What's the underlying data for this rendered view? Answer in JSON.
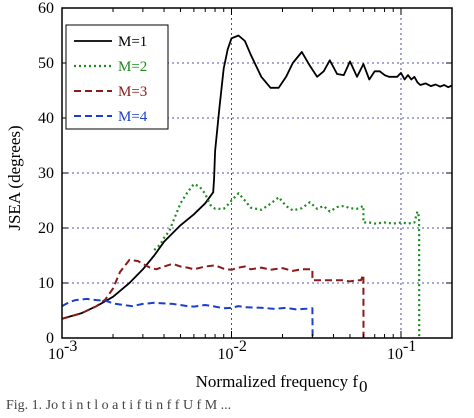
{
  "chart_data": {
    "type": "line",
    "xscale": "log",
    "xlim": [
      0.001,
      0.2
    ],
    "ylim": [
      0,
      60
    ],
    "xlabel_main": "Normalized frequency f",
    "xlabel_sub": "0",
    "ylabel": "JSEA (degrees)",
    "grid": true,
    "legend_position": "top-left",
    "x_ticks": [
      {
        "value": 0.001,
        "base": "10",
        "exp": "-3"
      },
      {
        "value": 0.01,
        "base": "10",
        "exp": "-2"
      },
      {
        "value": 0.1,
        "base": "10",
        "exp": "-1"
      }
    ],
    "y_ticks": [
      0,
      10,
      20,
      30,
      40,
      50,
      60
    ],
    "series": [
      {
        "name": "M=1",
        "color": "#000000",
        "dash": "solid",
        "x": [
          0.001,
          0.0013,
          0.0016,
          0.002,
          0.0025,
          0.003,
          0.0035,
          0.004,
          0.005,
          0.006,
          0.007,
          0.0078,
          0.0079,
          0.008,
          0.0085,
          0.009,
          0.0095,
          0.01,
          0.011,
          0.012,
          0.013,
          0.015,
          0.017,
          0.019,
          0.021,
          0.023,
          0.026,
          0.029,
          0.032,
          0.035,
          0.038,
          0.042,
          0.046,
          0.05,
          0.055,
          0.06,
          0.065,
          0.07,
          0.075,
          0.08,
          0.085,
          0.09,
          0.095,
          0.1,
          0.105,
          0.11,
          0.115,
          0.12,
          0.125,
          0.13,
          0.14,
          0.15,
          0.16,
          0.17,
          0.18,
          0.19,
          0.2
        ],
        "y": [
          3.5,
          4.5,
          5.8,
          7.5,
          10,
          12.5,
          15,
          17.5,
          20.5,
          22.5,
          24.5,
          26.5,
          29,
          34,
          42,
          49,
          52.5,
          54.5,
          55,
          54,
          51.5,
          47.5,
          45.5,
          45.5,
          47.5,
          50,
          52,
          49.5,
          47.5,
          48.5,
          50.5,
          48,
          47.8,
          50.3,
          47.5,
          49.8,
          47,
          48.5,
          48.5,
          47.8,
          47.5,
          47.5,
          47.5,
          48.2,
          47,
          47.8,
          47,
          47.5,
          46.5,
          46,
          46.3,
          45.8,
          46.1,
          45.7,
          46,
          45.6,
          45.9
        ]
      },
      {
        "name": "M=2",
        "color": "#1f8a1f",
        "dash": "dot",
        "x": [
          0.0035,
          0.0038,
          0.004,
          0.0043,
          0.0045,
          0.005,
          0.0055,
          0.006,
          0.0065,
          0.007,
          0.0075,
          0.008,
          0.009,
          0.0095,
          0.01,
          0.011,
          0.012,
          0.013,
          0.015,
          0.017,
          0.019,
          0.021,
          0.023,
          0.026,
          0.029,
          0.032,
          0.035,
          0.038,
          0.042,
          0.046,
          0.05,
          0.055,
          0.06,
          0.06001,
          0.065,
          0.07,
          0.08,
          0.09,
          0.1,
          0.11,
          0.12,
          0.125,
          0.128,
          0.1281
        ],
        "y": [
          16,
          17,
          18.2,
          19.5,
          21,
          24.5,
          26.5,
          28,
          27.5,
          26.2,
          24.2,
          23.5,
          23.5,
          24.2,
          25,
          26.3,
          25,
          23.7,
          23.3,
          24.4,
          25.6,
          24,
          23.2,
          23.6,
          24.7,
          23.5,
          24,
          23,
          23.8,
          24,
          23.6,
          23.5,
          24,
          21,
          21,
          20.8,
          21,
          20.8,
          21,
          20.8,
          21,
          23,
          22,
          0
        ]
      },
      {
        "name": "M=3",
        "color": "#8b1a1a",
        "dash": "dash",
        "x": [
          0.001,
          0.0013,
          0.0016,
          0.0018,
          0.002,
          0.0022,
          0.0025,
          0.0028,
          0.003,
          0.0033,
          0.0036,
          0.004,
          0.0045,
          0.005,
          0.0055,
          0.006,
          0.007,
          0.008,
          0.009,
          0.01,
          0.011,
          0.012,
          0.013,
          0.015,
          0.017,
          0.02,
          0.023,
          0.026,
          0.03,
          0.03001,
          0.035,
          0.04,
          0.045,
          0.05,
          0.055,
          0.058,
          0.06,
          0.0601
        ],
        "y": [
          3.5,
          4.5,
          5.8,
          7,
          9,
          12,
          14.2,
          14,
          13.5,
          12.8,
          12.5,
          13,
          13.5,
          13,
          12.8,
          12.5,
          13,
          13.2,
          12.6,
          12.4,
          12.8,
          13,
          12.5,
          12.8,
          12.4,
          12.7,
          12.2,
          12.5,
          12.5,
          10.5,
          10.5,
          10.5,
          10.5,
          10.3,
          10.5,
          10.5,
          11.5,
          0
        ]
      },
      {
        "name": "M=4",
        "color": "#1a3fd0",
        "dash": "dash",
        "x": [
          0.001,
          0.0011,
          0.0012,
          0.0014,
          0.0016,
          0.0018,
          0.002,
          0.0023,
          0.0026,
          0.003,
          0.0035,
          0.004,
          0.0045,
          0.005,
          0.0055,
          0.006,
          0.007,
          0.008,
          0.009,
          0.01,
          0.011,
          0.012,
          0.015,
          0.018,
          0.021,
          0.024,
          0.027,
          0.03,
          0.0301
        ],
        "y": [
          5.8,
          6.5,
          6.9,
          7.1,
          6.9,
          6.8,
          6.3,
          6,
          5.8,
          6.2,
          6.4,
          6.3,
          6.2,
          6,
          5.8,
          5.7,
          6,
          5.7,
          5.4,
          5.5,
          5.8,
          5.6,
          5.5,
          5.3,
          5.5,
          5.2,
          5.3,
          5.4,
          0
        ]
      }
    ]
  },
  "caption": "Fig. 1.  Jo    t  i  n  t  l  o  a    t         i      f      ti   n     f f   U    f  M   ..."
}
